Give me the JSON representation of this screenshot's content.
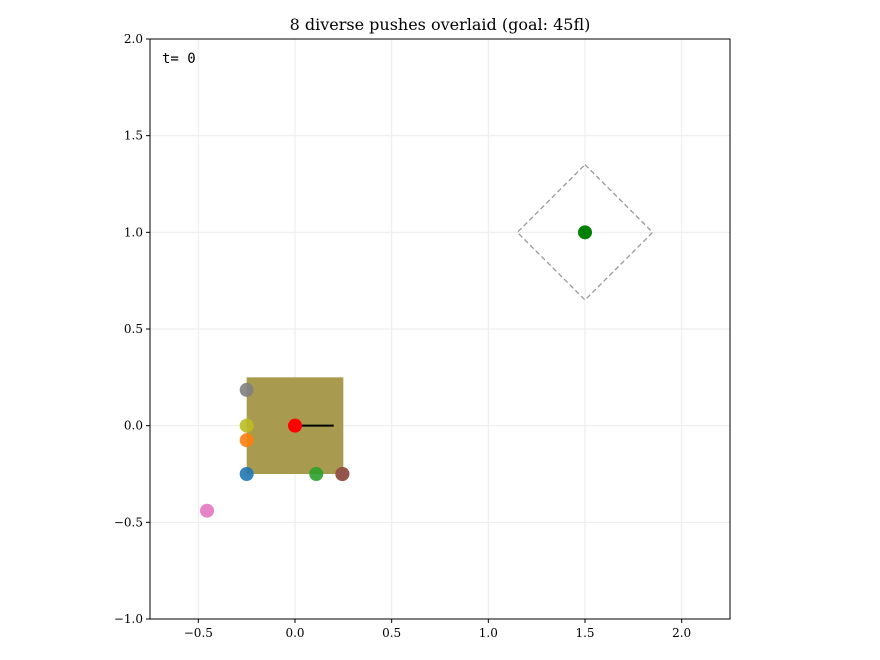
{
  "chart_data": {
    "type": "scatter",
    "title": "8 diverse pushes overlaid  (goal: 45fl)",
    "annotation": "t= 0",
    "xlabel": "",
    "ylabel": "",
    "xlim": [
      -0.75,
      2.25
    ],
    "ylim": [
      -1.0,
      2.0
    ],
    "xticks": [
      -0.5,
      0.0,
      0.5,
      1.0,
      1.5,
      2.0
    ],
    "yticks": [
      -1.0,
      -0.5,
      0.0,
      0.5,
      1.0,
      1.5,
      2.0
    ],
    "xtick_labels": [
      "−0.5",
      "0.0",
      "0.5",
      "1.0",
      "1.5",
      "2.0"
    ],
    "ytick_labels": [
      "−1.0",
      "−0.5",
      "0.0",
      "0.5",
      "1.0",
      "1.5",
      "2.0"
    ],
    "grid": true,
    "object": {
      "center": [
        0.0,
        0.0
      ],
      "half_size": 0.25,
      "color": "#a89a4e"
    },
    "heading_line": {
      "from": [
        0.0,
        0.0
      ],
      "to": [
        0.2,
        0.0
      ],
      "color": "#000000"
    },
    "goal": {
      "center": [
        1.5,
        1.0
      ],
      "half_diagonal": 0.35,
      "center_color": "#008000",
      "outline_color": "#999999"
    },
    "object_center_marker": {
      "x": 0.0,
      "y": 0.0,
      "color": "#ff0000"
    },
    "pushers": [
      {
        "x": -0.25,
        "y": -0.25,
        "color": "#1f77b4"
      },
      {
        "x": -0.25,
        "y": -0.075,
        "color": "#ff7f0e"
      },
      {
        "x": 0.11,
        "y": -0.25,
        "color": "#2ca02c"
      },
      {
        "x": 0.245,
        "y": -0.25,
        "color": "#d62728"
      },
      {
        "x": 0.245,
        "y": -0.25,
        "color": "#8c564b"
      },
      {
        "x": -0.455,
        "y": -0.44,
        "color": "#e377c2"
      },
      {
        "x": -0.25,
        "y": 0.185,
        "color": "#7f7f7f"
      },
      {
        "x": -0.25,
        "y": 0.0,
        "color": "#bcbd22"
      }
    ]
  }
}
